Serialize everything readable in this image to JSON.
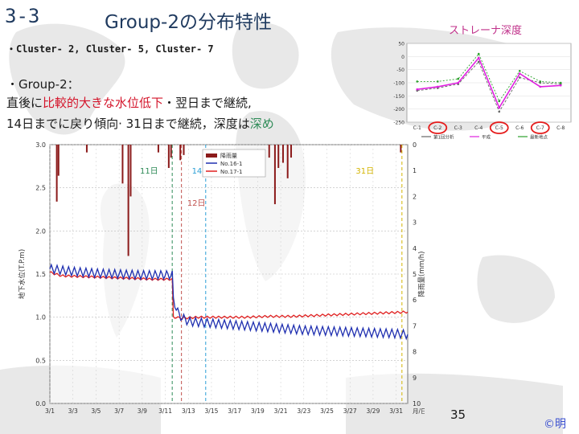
{
  "slide": {
    "number": "3-3",
    "title": "Group-2の分布特性",
    "clusters": "・Cluster- 2,  Cluster- 5,  Cluster- 7",
    "group_head": "・Group-2：",
    "line1": [
      {
        "text": "直後に",
        "style": "normal"
      },
      {
        "text": "比較的大きな水位低下",
        "style": "red"
      },
      {
        "text": "・翌日まで継続,",
        "style": "normal"
      }
    ],
    "line2": [
      {
        "text": "14日までに戻り傾向· 31日まで継続，深度は",
        "style": "normal"
      },
      {
        "text": "深め",
        "style": "green"
      }
    ],
    "page_number": "35",
    "copyright": "©明"
  },
  "colors": {
    "title": "#1f3a5f",
    "accent_red": "#d4142a",
    "accent_green": "#2e8b57",
    "rain": "#8b1a1a",
    "level_red": "#e02020",
    "level_blue": "#1f2fb0",
    "strainer_green": "#2ca02c",
    "strainer_magenta": "#e020e0",
    "strainer_gray": "#666666",
    "highlight": "#e51b1b"
  },
  "chart_data": [
    {
      "id": "water-level",
      "type": "line",
      "title": "",
      "ylabel": "地下水位(T.P.m)",
      "ylabel2": "降雨量(mm/h)",
      "ylim": [
        0,
        3.0
      ],
      "yticks": [
        "0.0",
        "0.5",
        "1.0",
        "1.5",
        "2.0",
        "2.5",
        "3.0"
      ],
      "ylim2": [
        0,
        10
      ],
      "yticks2": [
        "0",
        "1",
        "2",
        "3",
        "4",
        "5",
        "6",
        "7",
        "8",
        "9",
        "10"
      ],
      "x_range_days": [
        1,
        32
      ],
      "xticks": [
        "3/1",
        "3/3",
        "3/5",
        "3/7",
        "3/9",
        "3/11",
        "3/13",
        "3/15",
        "3/17",
        "3/19",
        "3/21",
        "3/23",
        "3/25",
        "3/27",
        "3/29",
        "3/31"
      ],
      "xunit": "月/日",
      "legend": [
        "降雨量",
        "No.16-1",
        "No.17-1"
      ],
      "legend_position": "top-center",
      "series": [
        {
          "name": "No.16-1",
          "color": "#e02020",
          "x": [
            1,
            2,
            4,
            6,
            8,
            10,
            11.6,
            11.7,
            12.5,
            14,
            16,
            18,
            20,
            22,
            24,
            26,
            28,
            30,
            32
          ],
          "y": [
            1.52,
            1.48,
            1.47,
            1.46,
            1.45,
            1.44,
            1.44,
            1.0,
            0.99,
            1.0,
            1.0,
            1.0,
            1.01,
            1.01,
            1.02,
            1.03,
            1.04,
            1.05,
            1.06
          ]
        },
        {
          "name": "No.17-1",
          "color": "#1f2fb0",
          "x": [
            1,
            3,
            5,
            7,
            9,
            11.6,
            11.7,
            12.2,
            13,
            15,
            17,
            19,
            21,
            23,
            25,
            27,
            29,
            31,
            32
          ],
          "y": [
            1.56,
            1.53,
            1.51,
            1.5,
            1.49,
            1.49,
            1.2,
            1.02,
            0.95,
            0.93,
            0.91,
            0.89,
            0.87,
            0.85,
            0.84,
            0.83,
            0.82,
            0.81,
            0.8
          ],
          "oscillation": 0.05
        }
      ],
      "rainfall": [
        {
          "day": 1.6,
          "mm": 2.2
        },
        {
          "day": 1.75,
          "mm": 1.2
        },
        {
          "day": 4.2,
          "mm": 0.3
        },
        {
          "day": 7.3,
          "mm": 1.5
        },
        {
          "day": 7.8,
          "mm": 4.3
        },
        {
          "day": 8.0,
          "mm": 2.0
        },
        {
          "day": 10.4,
          "mm": 0.3
        },
        {
          "day": 11.3,
          "mm": 0.9
        },
        {
          "day": 11.5,
          "mm": 0.5
        },
        {
          "day": 12.3,
          "mm": 0.6
        },
        {
          "day": 12.6,
          "mm": 0.4
        },
        {
          "day": 20.0,
          "mm": 0.5
        },
        {
          "day": 20.5,
          "mm": 2.3
        },
        {
          "day": 20.8,
          "mm": 0.9
        },
        {
          "day": 21.2,
          "mm": 0.7
        },
        {
          "day": 21.6,
          "mm": 1.3
        },
        {
          "day": 21.9,
          "mm": 0.5
        },
        {
          "day": 31.4,
          "mm": 0.3
        }
      ],
      "markers": [
        {
          "label": "11日",
          "day": 11.6,
          "color": "#2e8b57"
        },
        {
          "label": "12日",
          "day": 12.4,
          "color": "#c0504d"
        },
        {
          "label": "14日",
          "day": 14.5,
          "color": "#2a9fd6"
        },
        {
          "label": "31日",
          "day": 31.5,
          "color": "#d4b400"
        }
      ]
    },
    {
      "id": "strainer-depth",
      "type": "line",
      "title": "ストレーナ深度",
      "ylim": [
        -250,
        50
      ],
      "yticks": [
        "50",
        "0",
        "-50",
        "-100",
        "-150",
        "-200",
        "-250"
      ],
      "categories": [
        "C-1",
        "C-2",
        "C-3",
        "C-4",
        "C-5",
        "C-6",
        "C-7",
        "C-8"
      ],
      "highlighted": [
        "C-2",
        "C-5",
        "C-7"
      ],
      "series": [
        {
          "name": "第1回分析",
          "color": "#666666",
          "values": [
            -130,
            -120,
            -105,
            -20,
            -210,
            -80,
            -100,
            -105
          ]
        },
        {
          "name": "平成",
          "color": "#e020e0",
          "values": [
            -125,
            -115,
            -100,
            -5,
            -195,
            -65,
            -115,
            -110
          ]
        },
        {
          "name": "最新地点",
          "color": "#2ca02c",
          "values": [
            -95,
            -95,
            -85,
            10,
            -170,
            -55,
            -95,
            -100
          ]
        }
      ]
    }
  ]
}
